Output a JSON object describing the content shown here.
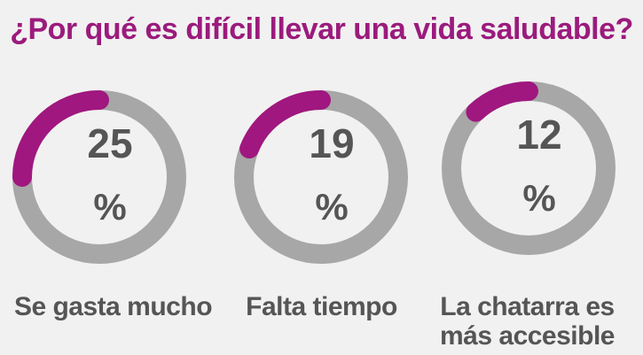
{
  "title": "¿Por qué es difícil llevar una vida saludable?",
  "colors": {
    "title": "#9b1b7d",
    "ring_track": "#a7a7a7",
    "ring_value": "#a0177f",
    "text": "#555555",
    "background": "#f2f1f1"
  },
  "chart_data": {
    "type": "pie",
    "title": "¿Por qué es difícil llevar una vida saludable?",
    "unit": "%",
    "categories": [
      "Se gasta mucho",
      "Falta tiempo",
      "La chatarra es más accesible"
    ],
    "values": [
      25,
      19,
      12
    ],
    "items": [
      {
        "number": "25",
        "sign": "%",
        "label_lines": [
          "Se gasta mucho"
        ]
      },
      {
        "number": "19",
        "sign": "%",
        "label_lines": [
          "Falta tiempo"
        ]
      },
      {
        "number": "12",
        "sign": "%",
        "label_lines": [
          "La chatarra es",
          "más accesible"
        ]
      }
    ]
  }
}
